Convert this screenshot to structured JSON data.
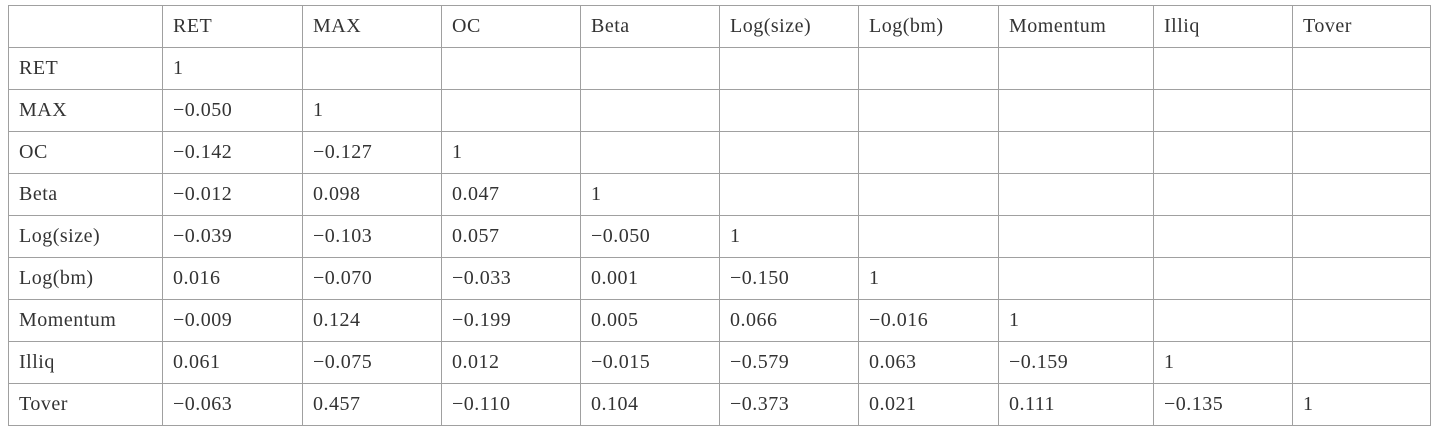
{
  "table": {
    "columns": [
      "RET",
      "MAX",
      "OC",
      "Beta",
      "Log(size)",
      "Log(bm)",
      "Momentum",
      "Illiq",
      "Tover"
    ],
    "rows": [
      {
        "label": "RET",
        "cells": [
          "1"
        ]
      },
      {
        "label": "MAX",
        "cells": [
          "−0.050",
          "1"
        ]
      },
      {
        "label": "OC",
        "cells": [
          "−0.142",
          "−0.127",
          "1"
        ]
      },
      {
        "label": "Beta",
        "cells": [
          "−0.012",
          "0.098",
          "0.047",
          "1"
        ]
      },
      {
        "label": "Log(size)",
        "cells": [
          "−0.039",
          "−0.103",
          "0.057",
          "−0.050",
          "1"
        ]
      },
      {
        "label": "Log(bm)",
        "cells": [
          "0.016",
          "−0.070",
          "−0.033",
          "0.001",
          "−0.150",
          "1"
        ]
      },
      {
        "label": "Momentum",
        "cells": [
          "−0.009",
          "0.124",
          "−0.199",
          "0.005",
          "0.066",
          "−0.016",
          "1"
        ]
      },
      {
        "label": "Illiq",
        "cells": [
          "0.061",
          "−0.075",
          "0.012",
          "−0.015",
          "−0.579",
          "0.063",
          "−0.159",
          "1"
        ]
      },
      {
        "label": "Tover",
        "cells": [
          "−0.063",
          "0.457",
          "−0.110",
          "0.104",
          "−0.373",
          "0.021",
          "0.111",
          "−0.135",
          "1"
        ]
      }
    ]
  }
}
